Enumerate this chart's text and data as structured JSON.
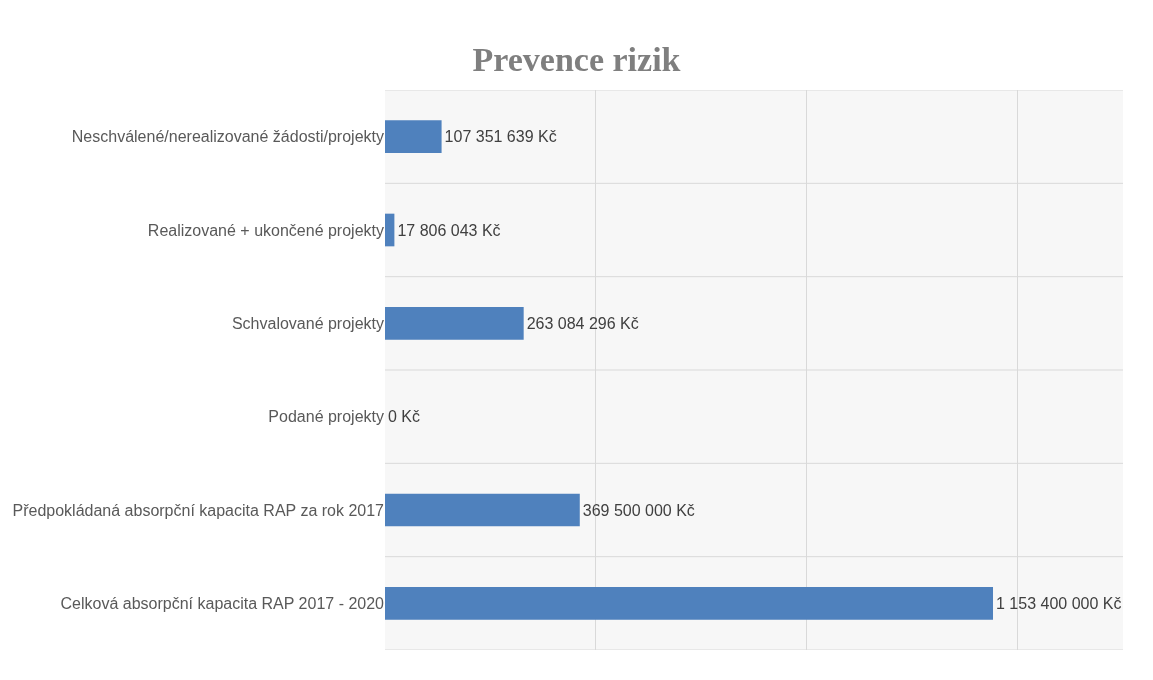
{
  "chart_data": {
    "type": "bar",
    "orientation": "horizontal",
    "title": "Prevence rizik",
    "categories": [
      "Neschválené/nerealizované žádosti/projekty",
      "Realizované + ukončené projekty",
      "Schvalované projekty",
      "Podané projekty",
      "Předpokládaná absorpční kapacita RAP za rok 2017",
      "Celková absorpční kapacita RAP 2017 - 2020"
    ],
    "values": [
      107351639,
      17806043,
      263084296,
      0,
      369500000,
      1153400000
    ],
    "value_labels": [
      "107 351 639 Kč",
      "17 806 043 Kč",
      "263 084 296 Kč",
      "0 Kč",
      "369 500 000 Kč",
      "1 153 400 000 Kč"
    ],
    "color": "#4f81bd",
    "xlim": [
      0,
      1400000000
    ],
    "xticks": [
      {
        "value": 0,
        "label": null
      },
      {
        "value": 400000000,
        "label": null
      },
      {
        "value": 800000000,
        "label": null
      },
      {
        "value": 1200000000,
        "label": null
      }
    ],
    "grid": true,
    "tick_labels": "y"
  }
}
